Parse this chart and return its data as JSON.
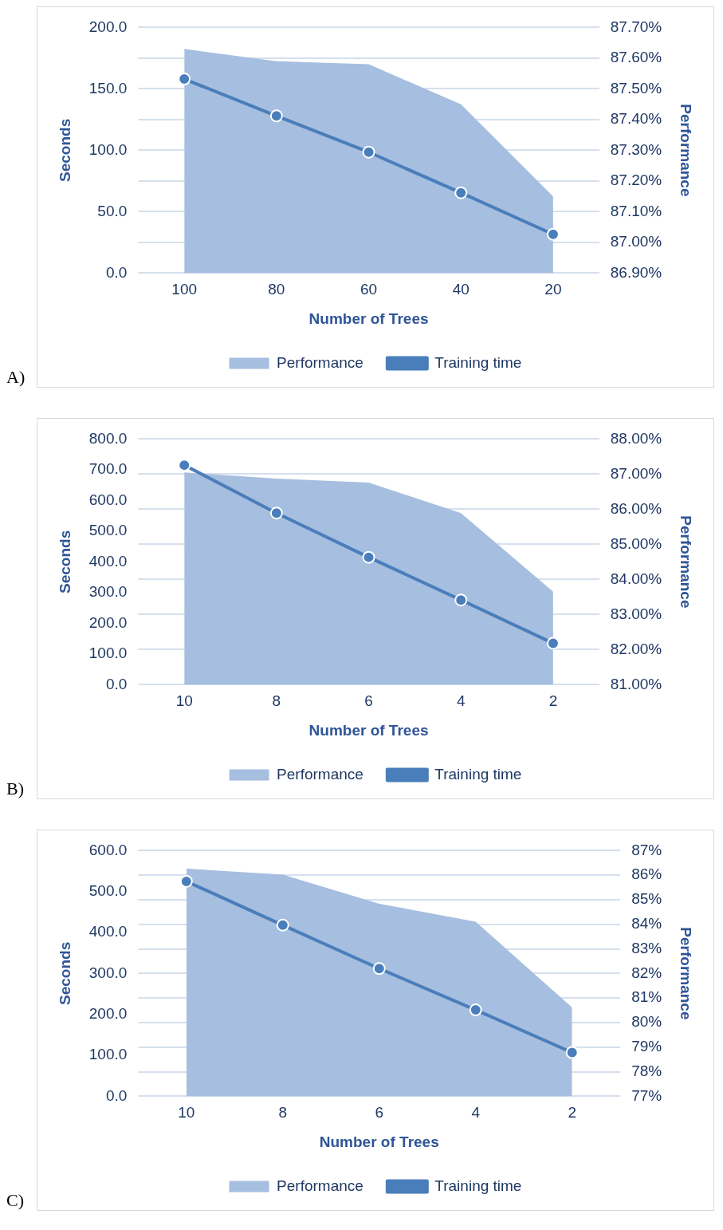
{
  "chart_data": [
    {
      "type": "line",
      "xlabel": "Number of Trees",
      "ylabel": "Seconds",
      "y2label": "Performance",
      "categories": [
        "100",
        "80",
        "60",
        "40",
        "20"
      ],
      "series": [
        {
          "name": "Performance",
          "type": "area",
          "axis": "y2",
          "color": "#a6bedf",
          "values": [
            87.63,
            87.59,
            87.58,
            87.45,
            87.15
          ]
        },
        {
          "name": "Training time",
          "type": "line",
          "axis": "y",
          "color": "#4a7ebb",
          "marker": "circle",
          "values": [
            158,
            128,
            98.5,
            65.4,
            31.6
          ]
        }
      ],
      "ylim": [
        0,
        200
      ],
      "yticks": [
        {
          "value": 0,
          "label": "0.0"
        },
        {
          "value": 50,
          "label": "50.0"
        },
        {
          "value": 100,
          "label": "100.0"
        },
        {
          "value": 150,
          "label": "150.0"
        },
        {
          "value": 200,
          "label": "200.0"
        }
      ],
      "y2lim": [
        86.9,
        87.7
      ],
      "y2ticks": [
        {
          "value": 86.9,
          "label": "86.90%"
        },
        {
          "value": 87.0,
          "label": "87.00%"
        },
        {
          "value": 87.1,
          "label": "87.10%"
        },
        {
          "value": 87.2,
          "label": "87.20%"
        },
        {
          "value": 87.3,
          "label": "87.30%"
        },
        {
          "value": 87.4,
          "label": "87.40%"
        },
        {
          "value": 87.5,
          "label": "87.50%"
        },
        {
          "value": 87.6,
          "label": "87.60%"
        },
        {
          "value": 87.7,
          "label": "87.70%"
        }
      ],
      "grid": "y2",
      "legend": "bottom",
      "annotations": [
        "A)"
      ]
    },
    {
      "type": "line",
      "xlabel": "Number of Trees",
      "ylabel": "Seconds",
      "y2label": "Performance",
      "categories": [
        "10",
        "8",
        "6",
        "4",
        "2"
      ],
      "series": [
        {
          "name": "Performance",
          "type": "area",
          "axis": "y2",
          "color": "#a6bedf",
          "values": [
            87.05,
            86.87,
            86.76,
            85.89,
            83.65
          ]
        },
        {
          "name": "Training time",
          "type": "line",
          "axis": "y",
          "color": "#4a7ebb",
          "marker": "circle",
          "values": [
            715,
            559,
            415,
            276,
            135
          ]
        }
      ],
      "ylim": [
        0,
        800
      ],
      "yticks": [
        {
          "value": 0,
          "label": "0.0"
        },
        {
          "value": 100,
          "label": "100.0"
        },
        {
          "value": 200,
          "label": "200.0"
        },
        {
          "value": 300,
          "label": "300.0"
        },
        {
          "value": 400,
          "label": "400.0"
        },
        {
          "value": 500,
          "label": "500.0"
        },
        {
          "value": 600,
          "label": "600.0"
        },
        {
          "value": 700,
          "label": "700.0"
        },
        {
          "value": 800,
          "label": "800.0"
        }
      ],
      "y2lim": [
        81,
        88
      ],
      "y2ticks": [
        {
          "value": 81,
          "label": "81.00%"
        },
        {
          "value": 82,
          "label": "82.00%"
        },
        {
          "value": 83,
          "label": "83.00%"
        },
        {
          "value": 84,
          "label": "84.00%"
        },
        {
          "value": 85,
          "label": "85.00%"
        },
        {
          "value": 86,
          "label": "86.00%"
        },
        {
          "value": 87,
          "label": "87.00%"
        },
        {
          "value": 88,
          "label": "88.00%"
        }
      ],
      "grid": "y2",
      "legend": "bottom",
      "annotations": [
        "B)"
      ]
    },
    {
      "type": "line",
      "xlabel": "Number of Trees",
      "ylabel": "Seconds",
      "y2label": "Performance",
      "categories": [
        "10",
        "8",
        "6",
        "4",
        "2"
      ],
      "series": [
        {
          "name": "Performance",
          "type": "area",
          "axis": "y2",
          "color": "#a6bedf",
          "values": [
            86.27,
            86.02,
            84.84,
            84.11,
            80.62
          ]
        },
        {
          "name": "Training time",
          "type": "line",
          "axis": "y",
          "color": "#4a7ebb",
          "marker": "circle",
          "values": [
            525,
            418,
            312,
            211,
            107
          ]
        }
      ],
      "ylim": [
        0,
        600
      ],
      "yticks": [
        {
          "value": 0,
          "label": "0.0"
        },
        {
          "value": 100,
          "label": "100.0"
        },
        {
          "value": 200,
          "label": "200.0"
        },
        {
          "value": 300,
          "label": "300.0"
        },
        {
          "value": 400,
          "label": "400.0"
        },
        {
          "value": 500,
          "label": "500.0"
        },
        {
          "value": 600,
          "label": "600.0"
        }
      ],
      "y2lim": [
        77,
        87
      ],
      "y2ticks": [
        {
          "value": 77,
          "label": "77%"
        },
        {
          "value": 78,
          "label": "78%"
        },
        {
          "value": 79,
          "label": "79%"
        },
        {
          "value": 80,
          "label": "80%"
        },
        {
          "value": 81,
          "label": "81%"
        },
        {
          "value": 82,
          "label": "82%"
        },
        {
          "value": 83,
          "label": "83%"
        },
        {
          "value": 84,
          "label": "84%"
        },
        {
          "value": 85,
          "label": "85%"
        },
        {
          "value": 86,
          "label": "86%"
        },
        {
          "value": 87,
          "label": "87%"
        }
      ],
      "grid": "y2",
      "legend": "bottom",
      "annotations": [
        "C)"
      ]
    }
  ]
}
